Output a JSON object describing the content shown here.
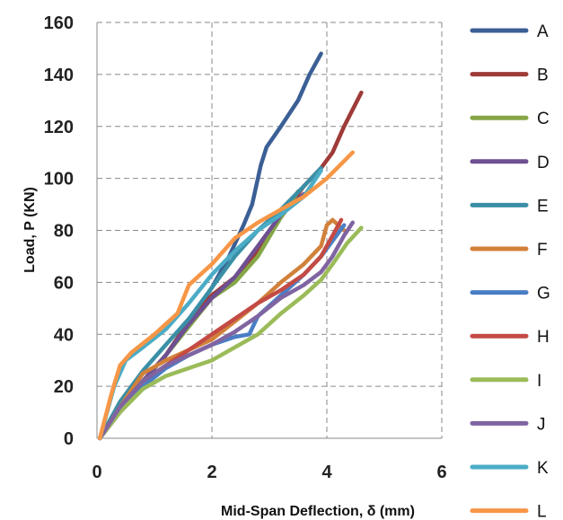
{
  "chart_data": {
    "type": "line",
    "title": "",
    "xlabel": "Mid-Span Deflection, δ (mm)",
    "ylabel": "Load, P (KN)",
    "xlim": [
      0,
      6
    ],
    "ylim": [
      0,
      160
    ],
    "xticks": [
      0,
      2,
      4,
      6
    ],
    "yticks": [
      0,
      20,
      40,
      60,
      80,
      100,
      120,
      140,
      160
    ],
    "grid": true,
    "legend_position": "right",
    "series": [
      {
        "name": "A",
        "color": "#3b5f95",
        "points": [
          [
            0.05,
            0
          ],
          [
            0.4,
            12
          ],
          [
            0.8,
            22
          ],
          [
            1.2,
            32
          ],
          [
            1.6,
            45
          ],
          [
            2.0,
            58
          ],
          [
            2.3,
            70
          ],
          [
            2.55,
            82
          ],
          [
            2.7,
            90
          ],
          [
            2.85,
            105
          ],
          [
            2.95,
            112
          ],
          [
            3.2,
            120
          ],
          [
            3.5,
            130
          ],
          [
            3.7,
            140
          ],
          [
            3.9,
            148
          ]
        ]
      },
      {
        "name": "B",
        "color": "#9e3b38",
        "points": [
          [
            0.05,
            0
          ],
          [
            0.4,
            12
          ],
          [
            0.8,
            22
          ],
          [
            1.2,
            32
          ],
          [
            1.6,
            45
          ],
          [
            2.0,
            55
          ],
          [
            2.4,
            62
          ],
          [
            2.8,
            72
          ],
          [
            3.2,
            85
          ],
          [
            3.6,
            97
          ],
          [
            3.9,
            104
          ],
          [
            4.1,
            110
          ],
          [
            4.3,
            120
          ],
          [
            4.6,
            133
          ]
        ]
      },
      {
        "name": "C",
        "color": "#85a646",
        "points": [
          [
            0.05,
            0
          ],
          [
            0.4,
            12
          ],
          [
            0.8,
            22
          ],
          [
            1.2,
            32
          ],
          [
            1.6,
            43
          ],
          [
            2.0,
            54
          ],
          [
            2.4,
            60
          ],
          [
            2.8,
            70
          ],
          [
            3.2,
            85
          ],
          [
            3.5,
            95
          ]
        ]
      },
      {
        "name": "D",
        "color": "#6d4f92",
        "points": [
          [
            0.05,
            0
          ],
          [
            0.4,
            12
          ],
          [
            0.8,
            22
          ],
          [
            1.2,
            32
          ],
          [
            1.6,
            44
          ],
          [
            2.0,
            54
          ],
          [
            2.4,
            62
          ],
          [
            2.8,
            74
          ],
          [
            3.2,
            86
          ],
          [
            3.6,
            94
          ]
        ]
      },
      {
        "name": "E",
        "color": "#3a8fa6",
        "points": [
          [
            0.05,
            0
          ],
          [
            0.4,
            14
          ],
          [
            0.8,
            26
          ],
          [
            1.2,
            36
          ],
          [
            1.6,
            46
          ],
          [
            2.0,
            58
          ],
          [
            2.4,
            70
          ],
          [
            2.8,
            80
          ],
          [
            3.2,
            88
          ],
          [
            3.6,
            97
          ],
          [
            3.9,
            104
          ]
        ]
      },
      {
        "name": "F",
        "color": "#d1813a",
        "points": [
          [
            0.05,
            0
          ],
          [
            0.4,
            12
          ],
          [
            0.8,
            25
          ],
          [
            1.2,
            30
          ],
          [
            1.6,
            34
          ],
          [
            2.0,
            38
          ],
          [
            2.4,
            45
          ],
          [
            2.8,
            52
          ],
          [
            3.2,
            60
          ],
          [
            3.6,
            67
          ],
          [
            3.9,
            74
          ],
          [
            4.0,
            82
          ],
          [
            4.1,
            84
          ],
          [
            4.3,
            80
          ]
        ]
      },
      {
        "name": "G",
        "color": "#4a7ec4",
        "points": [
          [
            0.05,
            0
          ],
          [
            0.4,
            10
          ],
          [
            0.8,
            20
          ],
          [
            1.2,
            27
          ],
          [
            1.6,
            32
          ],
          [
            2.0,
            36
          ],
          [
            2.4,
            39
          ],
          [
            2.65,
            40
          ],
          [
            2.8,
            47
          ],
          [
            3.2,
            55
          ],
          [
            3.6,
            63
          ],
          [
            3.9,
            70
          ],
          [
            4.1,
            76
          ],
          [
            4.3,
            82
          ]
        ]
      },
      {
        "name": "H",
        "color": "#c44a45",
        "points": [
          [
            0.05,
            0
          ],
          [
            0.4,
            12
          ],
          [
            0.8,
            22
          ],
          [
            1.2,
            28
          ],
          [
            1.6,
            34
          ],
          [
            2.0,
            40
          ],
          [
            2.4,
            46
          ],
          [
            2.8,
            52
          ],
          [
            3.2,
            57
          ],
          [
            3.6,
            63
          ],
          [
            3.9,
            70
          ],
          [
            4.1,
            78
          ],
          [
            4.25,
            84
          ]
        ]
      },
      {
        "name": "I",
        "color": "#9bbb59",
        "points": [
          [
            0.05,
            0
          ],
          [
            0.4,
            10
          ],
          [
            0.8,
            19
          ],
          [
            1.2,
            24
          ],
          [
            1.6,
            27
          ],
          [
            2.0,
            30
          ],
          [
            2.4,
            35
          ],
          [
            2.8,
            40
          ],
          [
            3.2,
            48
          ],
          [
            3.6,
            55
          ],
          [
            3.9,
            61
          ],
          [
            4.1,
            67
          ],
          [
            4.35,
            75
          ],
          [
            4.6,
            81
          ]
        ]
      },
      {
        "name": "J",
        "color": "#8064a2",
        "points": [
          [
            0.05,
            0
          ],
          [
            0.4,
            12
          ],
          [
            0.8,
            22
          ],
          [
            1.2,
            28
          ],
          [
            1.6,
            32
          ],
          [
            2.0,
            36
          ],
          [
            2.4,
            41
          ],
          [
            2.8,
            47
          ],
          [
            3.2,
            54
          ],
          [
            3.6,
            59
          ],
          [
            3.9,
            64
          ],
          [
            4.1,
            70
          ],
          [
            4.3,
            78
          ],
          [
            4.45,
            83
          ]
        ]
      },
      {
        "name": "K",
        "color": "#4bacc6",
        "points": [
          [
            0.05,
            0
          ],
          [
            0.3,
            20
          ],
          [
            0.5,
            30
          ],
          [
            0.8,
            35
          ],
          [
            1.2,
            42
          ],
          [
            1.6,
            52
          ],
          [
            2.0,
            63
          ],
          [
            2.4,
            72
          ],
          [
            2.8,
            80
          ],
          [
            3.2,
            86
          ],
          [
            3.6,
            93
          ],
          [
            3.9,
            103
          ]
        ]
      },
      {
        "name": "L",
        "color": "#f79646",
        "points": [
          [
            0.05,
            0
          ],
          [
            0.25,
            17
          ],
          [
            0.4,
            28
          ],
          [
            0.6,
            33
          ],
          [
            1.0,
            40
          ],
          [
            1.4,
            48
          ],
          [
            1.6,
            59
          ],
          [
            2.0,
            67
          ],
          [
            2.4,
            77
          ],
          [
            2.8,
            83
          ],
          [
            3.2,
            88
          ],
          [
            3.6,
            93
          ],
          [
            4.0,
            100
          ],
          [
            4.45,
            110
          ]
        ]
      }
    ]
  }
}
